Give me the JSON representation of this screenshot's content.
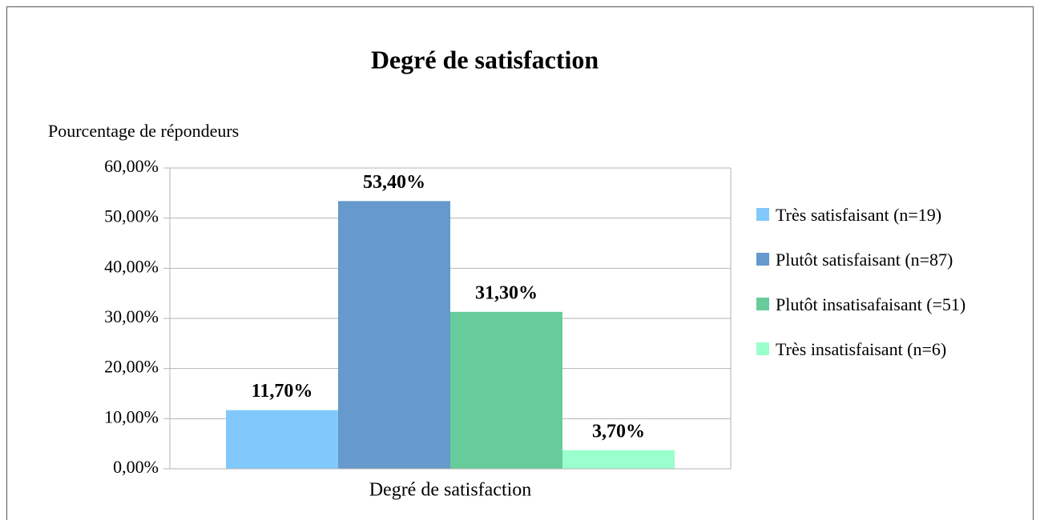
{
  "chart_data": {
    "type": "bar",
    "title": "Degré de satisfaction",
    "y_label": "Pourcentage de répondeurs",
    "categories": [
      "Degré de satisfaction"
    ],
    "series": [
      {
        "name": "Très satisfaisant (n=19)",
        "color": "#82c9fb",
        "values": [
          11.7
        ],
        "value_labels": [
          "11,70%"
        ]
      },
      {
        "name": "Plutôt satisfaisant (n=87)",
        "color": "#6699cc",
        "values": [
          53.4
        ],
        "value_labels": [
          "53,40%"
        ]
      },
      {
        "name": "Plutôt insatisafaisant (=51)",
        "color": "#66cc99",
        "values": [
          31.3
        ],
        "value_labels": [
          "31,30%"
        ]
      },
      {
        "name": "Très insatisfaisant (n=6)",
        "color": "#99ffcc",
        "values": [
          3.7
        ],
        "value_labels": [
          "3,70%"
        ]
      }
    ],
    "ylim": [
      0,
      60
    ],
    "yticks": [
      {
        "value": 0,
        "label": "0,00%"
      },
      {
        "value": 10,
        "label": "10,00%"
      },
      {
        "value": 20,
        "label": "20,00%"
      },
      {
        "value": 30,
        "label": "30,00%"
      },
      {
        "value": 40,
        "label": "40,00%"
      },
      {
        "value": 50,
        "label": "50,00%"
      },
      {
        "value": 60,
        "label": "60,00%"
      }
    ],
    "grid": true,
    "legend": "right"
  }
}
